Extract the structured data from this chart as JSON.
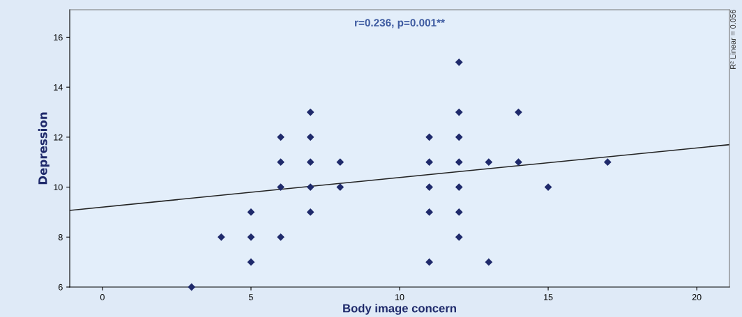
{
  "chart_data": {
    "type": "scatter",
    "xlabel": "Body image concern",
    "ylabel": "Depression",
    "annotations": [
      "r=0.236, p=0.001**",
      "R² Linear = 0.056"
    ],
    "series": [
      {
        "color": "#1f2a6b",
        "marker": "diamond",
        "x": [
          3,
          4,
          5,
          5,
          5,
          6,
          6,
          6,
          6,
          7,
          7,
          7,
          7,
          7,
          8,
          8,
          11,
          11,
          11,
          11,
          11,
          12,
          12,
          12,
          12,
          12,
          12,
          12,
          13,
          13,
          14,
          14,
          15,
          17
        ],
        "values": [
          6,
          8,
          9,
          8,
          7,
          12,
          11,
          10,
          8,
          13,
          12,
          11,
          10,
          9,
          11,
          10,
          12,
          11,
          10,
          9,
          7,
          15,
          13,
          12,
          11,
          10,
          9,
          8,
          11,
          7,
          13,
          11,
          10,
          11
        ]
      },
      {
        "type": "line",
        "color": "#222222",
        "marker": "none",
        "line_style": "solid",
        "x": [
          -1.1,
          21.1
        ],
        "values": [
          9.07,
          11.7
        ]
      }
    ],
    "xlim": [
      -1.1,
      21.1
    ],
    "xticks": [
      0,
      5,
      10,
      15,
      20
    ],
    "ylim": [
      6,
      17.1
    ],
    "yticks": [
      6,
      8,
      10,
      12,
      14,
      16
    ],
    "grid": false,
    "legend": false
  }
}
